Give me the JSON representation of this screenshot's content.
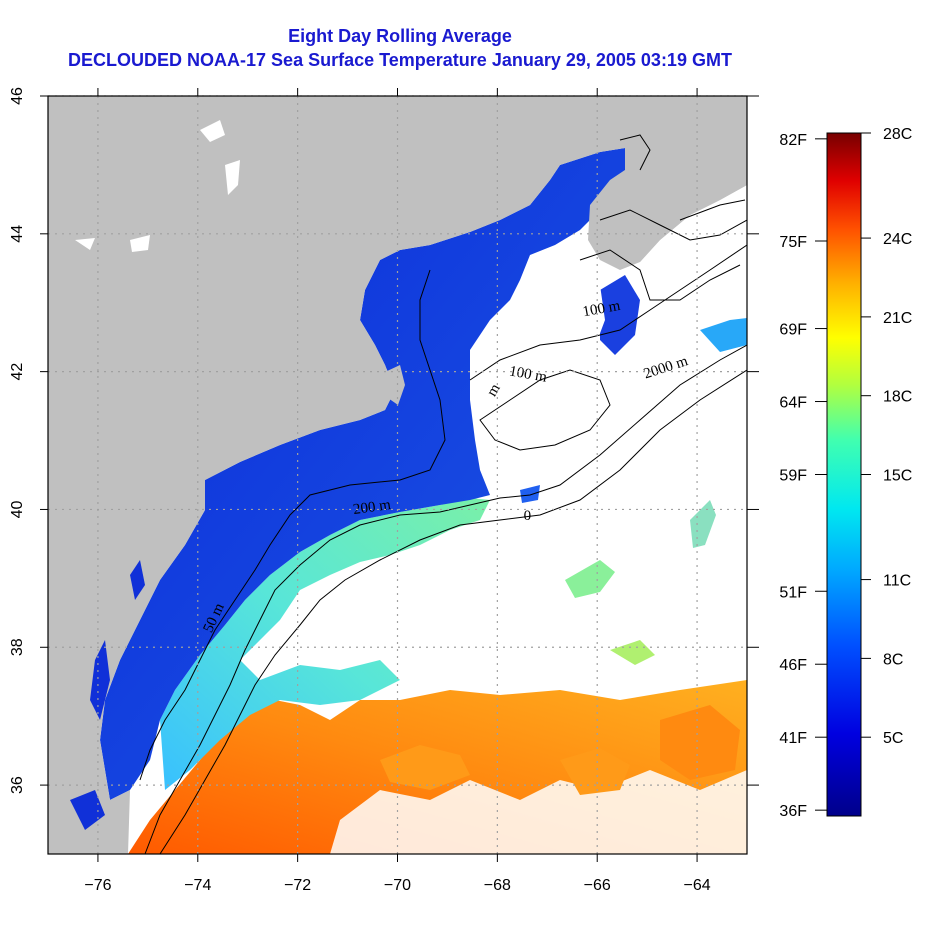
{
  "title": "Eight Day Rolling Average",
  "subtitle": "DECLOUDED NOAA-17 Sea Surface Temperature January 29, 2005 03:19 GMT",
  "map": {
    "lon_range": [
      -77,
      -63
    ],
    "lat_range": [
      35,
      46
    ],
    "x_ticks": [
      {
        "value": -76,
        "label": "−76"
      },
      {
        "value": -74,
        "label": "−74"
      },
      {
        "value": -72,
        "label": "−72"
      },
      {
        "value": -70,
        "label": "−70"
      },
      {
        "value": -68,
        "label": "−68"
      },
      {
        "value": -66,
        "label": "−66"
      },
      {
        "value": -64,
        "label": "−64"
      }
    ],
    "y_ticks": [
      {
        "value": 36,
        "label": "36"
      },
      {
        "value": 38,
        "label": "38"
      },
      {
        "value": 40,
        "label": "40"
      },
      {
        "value": 42,
        "label": "42"
      },
      {
        "value": 44,
        "label": "44"
      },
      {
        "value": 46,
        "label": "46"
      }
    ],
    "grid": true,
    "contour_labels": [
      {
        "text": "200 m",
        "lon": -70.5,
        "lat": 39.97,
        "rotate": -8
      },
      {
        "text": "2000 m",
        "lon": -64.6,
        "lat": 42.0,
        "rotate": -18
      },
      {
        "text": "100 m",
        "lon": -67.4,
        "lat": 41.9,
        "rotate": 10
      },
      {
        "text": "100 m",
        "lon": -65.9,
        "lat": 42.85,
        "rotate": -10
      },
      {
        "text": "m",
        "lon": -68.0,
        "lat": 41.7,
        "rotate": -60
      },
      {
        "text": "50 m",
        "lon": -73.6,
        "lat": 38.4,
        "rotate": -65
      },
      {
        "text": "0",
        "lon": -67.4,
        "lat": 39.85,
        "rotate": 0
      }
    ],
    "colors": {
      "land": "#c0c0c0",
      "no_data": "#ffffff",
      "grid": "#a0a0a0"
    }
  },
  "colorbar": {
    "celsius_labels": [
      "28C",
      "24C",
      "21C",
      "18C",
      "15C",
      "11C",
      "8C",
      "5C"
    ],
    "celsius_values": [
      28,
      24,
      21,
      18,
      15,
      11,
      8,
      5
    ],
    "fahrenheit_labels": [
      "82F",
      "75F",
      "69F",
      "64F",
      "59F",
      "51F",
      "46F",
      "41F",
      "36F"
    ],
    "fahrenheit_values": [
      82,
      75,
      69,
      64,
      59,
      51,
      46,
      41,
      36
    ],
    "min_c": 2,
    "max_c": 28
  }
}
